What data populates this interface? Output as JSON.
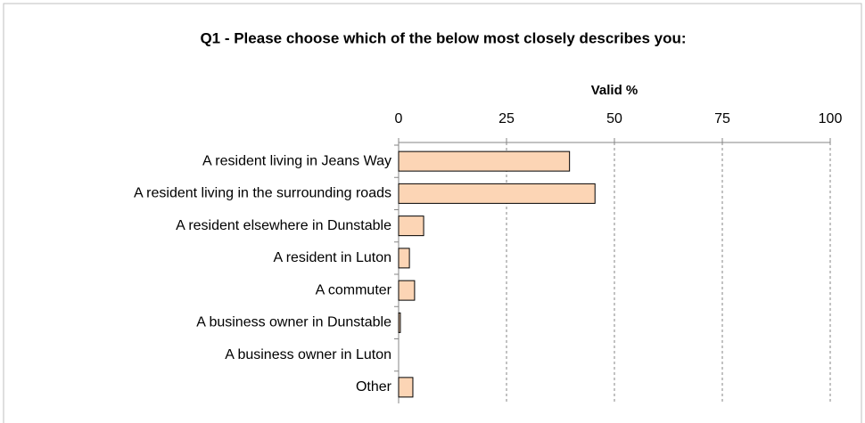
{
  "chart_data": {
    "type": "bar",
    "orientation": "horizontal",
    "title": "Q1 - Please choose which of the below most closely describes you:",
    "x_label": "Valid %",
    "categories": [
      "A resident living in Jeans Way",
      "A resident living in the surrounding roads",
      "A resident elsewhere in Dunstable",
      "A resident in Luton",
      "A commuter",
      "A business owner in Dunstable",
      "A business owner in Luton",
      "Other"
    ],
    "values": [
      39.6,
      45.5,
      5.8,
      2.5,
      3.7,
      0.4,
      0,
      3.3
    ],
    "color": "#fcd5b5",
    "xlim": [
      0,
      100
    ],
    "xticks": [
      0,
      25,
      50,
      75,
      100
    ],
    "grid": true
  }
}
